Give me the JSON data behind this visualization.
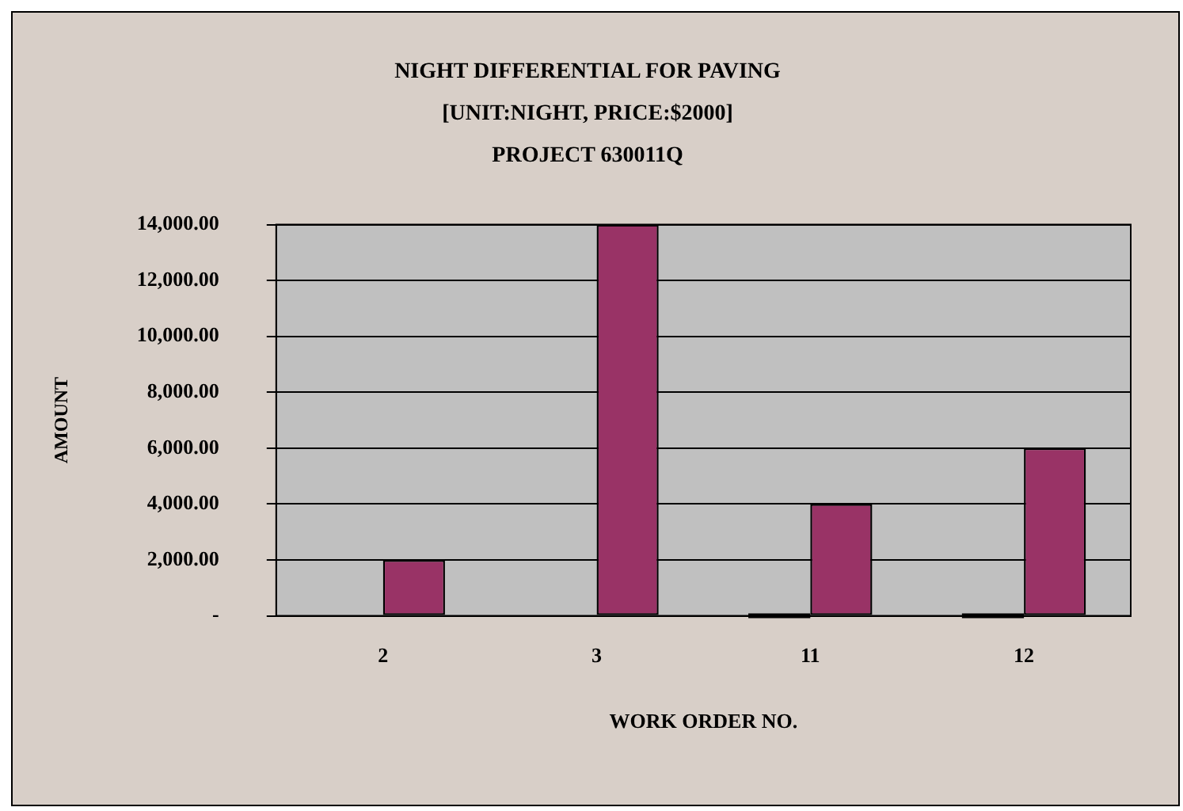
{
  "chart_data": {
    "type": "bar",
    "title": "NIGHT DIFFERENTIAL FOR PAVING\n[UNIT:NIGHT, PRICE:$2000]\nPROJECT 630011Q",
    "xlabel": "WORK ORDER NO.",
    "ylabel": "AMOUNT",
    "categories": [
      "2",
      "3",
      "11",
      "12"
    ],
    "series": [
      {
        "color": "#000000",
        "values": [
          null,
          null,
          0,
          0
        ]
      },
      {
        "color": "#993366",
        "values": [
          2000,
          14000,
          4000,
          6000
        ]
      }
    ],
    "ylim": [
      0,
      14000
    ],
    "yticks": [
      {
        "value": 0,
        "label": "-"
      },
      {
        "value": 2000,
        "label": "2,000.00"
      },
      {
        "value": 4000,
        "label": "4,000.00"
      },
      {
        "value": 6000,
        "label": "6,000.00"
      },
      {
        "value": 8000,
        "label": "8,000.00"
      },
      {
        "value": 10000,
        "label": "10,000.00"
      },
      {
        "value": 12000,
        "label": "12,000.00"
      },
      {
        "value": 14000,
        "label": "14,000.00"
      }
    ],
    "grid": "y",
    "legend": false
  }
}
